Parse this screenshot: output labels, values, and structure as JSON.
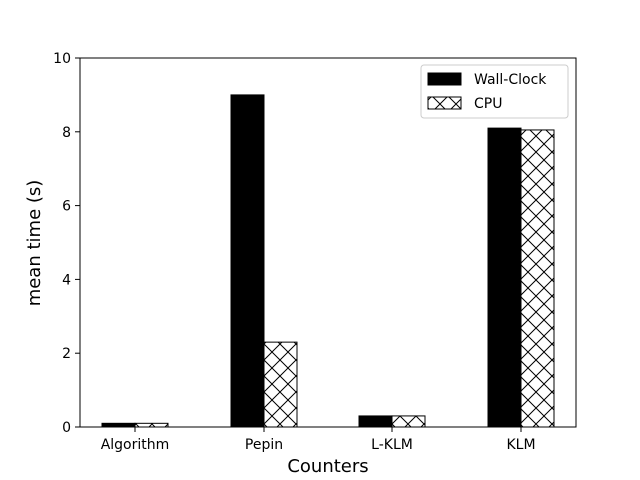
{
  "chart_data": {
    "type": "bar",
    "title": "",
    "xlabel": "Counters",
    "ylabel": "mean time (s)",
    "categories": [
      "Algorithm",
      "Pepin",
      "L-KLM",
      "KLM"
    ],
    "series": [
      {
        "name": "Wall-Clock",
        "values": [
          0.1,
          9.0,
          0.3,
          8.1
        ],
        "fill": "#000000",
        "pattern": "solid"
      },
      {
        "name": "CPU",
        "values": [
          0.1,
          2.3,
          0.3,
          8.05
        ],
        "fill": "#ffffff",
        "pattern": "crosshatch"
      }
    ],
    "ylim": [
      0,
      10
    ],
    "yticks": [
      "0",
      "2",
      "4",
      "6",
      "8",
      "10"
    ],
    "grid": false,
    "legend_position": "top-right"
  }
}
